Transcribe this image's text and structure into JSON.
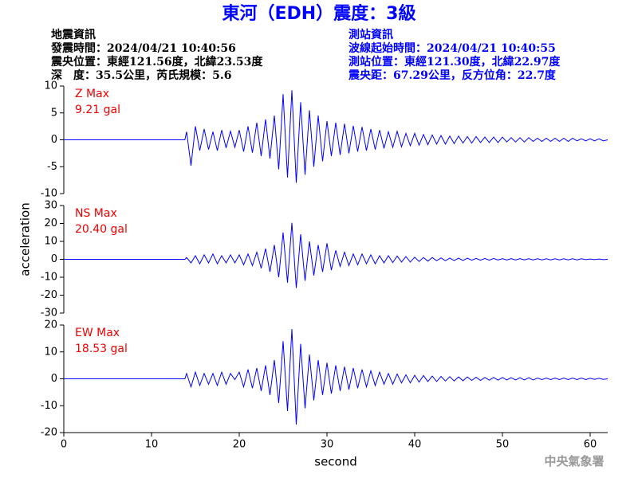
{
  "header": {
    "title": "東河（EDH）震度：3級",
    "left": [
      "地震資訊",
      "發震時間：2024/04/21 10:40:56",
      "震央位置：東經121.56度，北緯23.53度",
      "深　度：35.5公里，芮氏規模：5.6"
    ],
    "right": [
      "測站資訊",
      "波線起始時間：2024/04/21 10:40:55",
      "測站位置：東經121.30度，北緯22.97度",
      "震央距：67.29公里，反方位角：22.7度"
    ]
  },
  "footer": "中央氣象署",
  "chart_data": [
    {
      "type": "line",
      "annotations": [
        "Z Max",
        "9.21 gal"
      ],
      "ylim": [
        -10,
        10
      ],
      "yticks": [
        -10,
        -5,
        0,
        5,
        10
      ],
      "xlim": [
        0,
        62
      ],
      "x": [
        0,
        13.8,
        14,
        14.5,
        15,
        15.5,
        16,
        16.5,
        17,
        17.5,
        18,
        18.5,
        19,
        19.5,
        20,
        20.5,
        21,
        21.5,
        22,
        22.5,
        23,
        23.5,
        24,
        24.5,
        25,
        25.5,
        26,
        26.5,
        27,
        27.5,
        28,
        28.5,
        29,
        29.5,
        30,
        30.5,
        31,
        31.5,
        32,
        32.5,
        33,
        33.5,
        34,
        34.5,
        35,
        35.5,
        36,
        36.5,
        37,
        37.5,
        38,
        38.5,
        39,
        39.5,
        40,
        40.5,
        41,
        41.5,
        42,
        42.5,
        43,
        43.5,
        44,
        44.5,
        45,
        45.5,
        46,
        46.5,
        47,
        47.5,
        48,
        48.5,
        49,
        49.5,
        50,
        50.5,
        51,
        51.5,
        52,
        52.5,
        53,
        53.5,
        54,
        54.5,
        55,
        55.5,
        56,
        56.5,
        57,
        57.5,
        58,
        58.5,
        59,
        59.5,
        60,
        60.5,
        61,
        61.5,
        62
      ],
      "series": [
        {
          "color": "#0000ff",
          "values": [
            0,
            0,
            1.5,
            -4.8,
            2.5,
            -2,
            2,
            -1.8,
            1.5,
            -2,
            1.8,
            -1.5,
            1.6,
            -1.4,
            1.8,
            -2.2,
            2.5,
            -2.4,
            3.2,
            -3,
            3.8,
            -3.5,
            4.5,
            -5.5,
            8.5,
            -7,
            9.21,
            -8,
            7,
            -6.5,
            5.5,
            -5,
            4.5,
            -4,
            3.5,
            -3,
            3.2,
            -2.8,
            3,
            -2.5,
            2.6,
            -2.2,
            2.4,
            -2,
            2,
            -1.8,
            1.8,
            -1.6,
            1.5,
            -1.4,
            1.6,
            -1.3,
            1.2,
            -1.1,
            1.2,
            -1,
            1,
            -0.9,
            0.9,
            -0.8,
            0.8,
            -0.8,
            0.7,
            -0.7,
            0.7,
            -0.6,
            0.6,
            -0.6,
            0.6,
            -0.5,
            0.5,
            -0.5,
            0.5,
            -0.5,
            0.5,
            -0.4,
            0.4,
            -0.4,
            0.4,
            -0.4,
            0.4,
            -0.3,
            0.3,
            -0.3,
            0.3,
            -0.3,
            0.3,
            -0.3,
            0.3,
            -0.3,
            0.3,
            -0.2,
            0.2,
            -0.2,
            0.2,
            -0.2,
            0.2,
            -0.2,
            0
          ]
        }
      ]
    },
    {
      "type": "line",
      "annotations": [
        "NS Max",
        "20.40 gal"
      ],
      "y_label": "acceleration",
      "ylim": [
        -30,
        30
      ],
      "yticks": [
        -30,
        -20,
        -10,
        0,
        10,
        20,
        30
      ],
      "xlim": [
        0,
        62
      ],
      "x": [
        0,
        13.8,
        14,
        14.5,
        15,
        15.5,
        16,
        16.5,
        17,
        17.5,
        18,
        18.5,
        19,
        19.5,
        20,
        20.5,
        21,
        21.5,
        22,
        22.5,
        23,
        23.5,
        24,
        24.5,
        25,
        25.5,
        26,
        26.5,
        27,
        27.5,
        28,
        28.5,
        29,
        29.5,
        30,
        30.5,
        31,
        31.5,
        32,
        32.5,
        33,
        33.5,
        34,
        34.5,
        35,
        35.5,
        36,
        36.5,
        37,
        37.5,
        38,
        38.5,
        39,
        39.5,
        40,
        40.5,
        41,
        41.5,
        42,
        42.5,
        43,
        43.5,
        44,
        44.5,
        45,
        45.5,
        46,
        46.5,
        47,
        47.5,
        48,
        48.5,
        49,
        49.5,
        50,
        50.5,
        51,
        51.5,
        52,
        52.5,
        53,
        53.5,
        54,
        54.5,
        55,
        55.5,
        56,
        56.5,
        57,
        57.5,
        58,
        58.5,
        59,
        59.5,
        60,
        60.5,
        61,
        61.5,
        62
      ],
      "series": [
        {
          "color": "#0000ff",
          "values": [
            0,
            0,
            1,
            -2,
            2,
            -2.5,
            2.5,
            -2,
            3,
            -2.5,
            2,
            -2,
            2.5,
            -2,
            2.5,
            -3,
            3,
            -3.5,
            4,
            -5,
            6,
            -7,
            8,
            -10,
            15,
            -13,
            20.4,
            -16,
            14,
            -12,
            10,
            -9,
            8,
            -7,
            9,
            -6,
            5,
            -4,
            4,
            -3.5,
            3,
            -3,
            3,
            -2.5,
            2.5,
            -2.5,
            2,
            -2,
            2,
            -1.8,
            1.8,
            -1.5,
            1.5,
            -1.5,
            1.2,
            -1.2,
            1,
            -1,
            1,
            -0.8,
            0.8,
            -0.8,
            0.7,
            -0.7,
            0.6,
            -0.6,
            0.6,
            -0.5,
            0.5,
            -0.5,
            0.5,
            -0.5,
            0.5,
            -0.4,
            0.4,
            -0.4,
            0.4,
            -0.4,
            0.4,
            -0.3,
            0.3,
            -0.3,
            0.3,
            -0.3,
            0.3,
            -0.3,
            0.3,
            -0.3,
            0.3,
            -0.3,
            0.3,
            -0.3,
            0.3,
            -0.2,
            0.2,
            -0.2,
            0.2,
            -0.2,
            0
          ]
        }
      ]
    },
    {
      "type": "line",
      "annotations": [
        "EW Max",
        "18.53 gal"
      ],
      "x_label": "second",
      "ylim": [
        -20,
        20
      ],
      "yticks": [
        -20,
        -10,
        0,
        10,
        20
      ],
      "xlim": [
        0,
        62
      ],
      "xticks": [
        0,
        10,
        20,
        30,
        40,
        50,
        60
      ],
      "x": [
        0,
        13.8,
        14,
        14.5,
        15,
        15.5,
        16,
        16.5,
        17,
        17.5,
        18,
        18.5,
        19,
        19.5,
        20,
        20.5,
        21,
        21.5,
        22,
        22.5,
        23,
        23.5,
        24,
        24.5,
        25,
        25.5,
        26,
        26.5,
        27,
        27.5,
        28,
        28.5,
        29,
        29.5,
        30,
        30.5,
        31,
        31.5,
        32,
        32.5,
        33,
        33.5,
        34,
        34.5,
        35,
        35.5,
        36,
        36.5,
        37,
        37.5,
        38,
        38.5,
        39,
        39.5,
        40,
        40.5,
        41,
        41.5,
        42,
        42.5,
        43,
        43.5,
        44,
        44.5,
        45,
        45.5,
        46,
        46.5,
        47,
        47.5,
        48,
        48.5,
        49,
        49.5,
        50,
        50.5,
        51,
        51.5,
        52,
        52.5,
        53,
        53.5,
        54,
        54.5,
        55,
        55.5,
        56,
        56.5,
        57,
        57.5,
        58,
        58.5,
        59,
        59.5,
        60,
        60.5,
        61,
        61.5,
        62
      ],
      "series": [
        {
          "color": "#0000ff",
          "values": [
            0,
            0,
            2,
            -3,
            2.5,
            -2.5,
            2,
            -2,
            2,
            -2.5,
            2.5,
            -2,
            2,
            -0.3,
            2.5,
            -3,
            3.5,
            -3.5,
            4,
            -4.5,
            5,
            -6,
            7,
            -9,
            14,
            -12,
            18.53,
            -17,
            13,
            -11,
            9,
            -8,
            7,
            -6,
            6,
            -5.5,
            5,
            -4.5,
            4.5,
            -4,
            4,
            -3.5,
            3.5,
            -3,
            3,
            -2.5,
            2.5,
            -2,
            2,
            -2,
            1.8,
            -1.5,
            1.5,
            -1.5,
            1.3,
            -1.2,
            1.2,
            -1,
            1,
            -1,
            0.9,
            -0.8,
            0.8,
            -0.8,
            0.7,
            -0.7,
            0.7,
            -0.6,
            0.6,
            -0.6,
            0.5,
            -0.5,
            0.5,
            -0.5,
            0.5,
            -0.4,
            0.4,
            -0.4,
            0.4,
            -0.4,
            0.4,
            -0.4,
            0.3,
            -0.3,
            0.3,
            -0.3,
            0.3,
            -0.3,
            0.3,
            -0.3,
            0.3,
            -0.3,
            0.3,
            -0.3,
            0.2,
            -0.2,
            0.2,
            -0.2,
            0
          ]
        }
      ]
    }
  ]
}
